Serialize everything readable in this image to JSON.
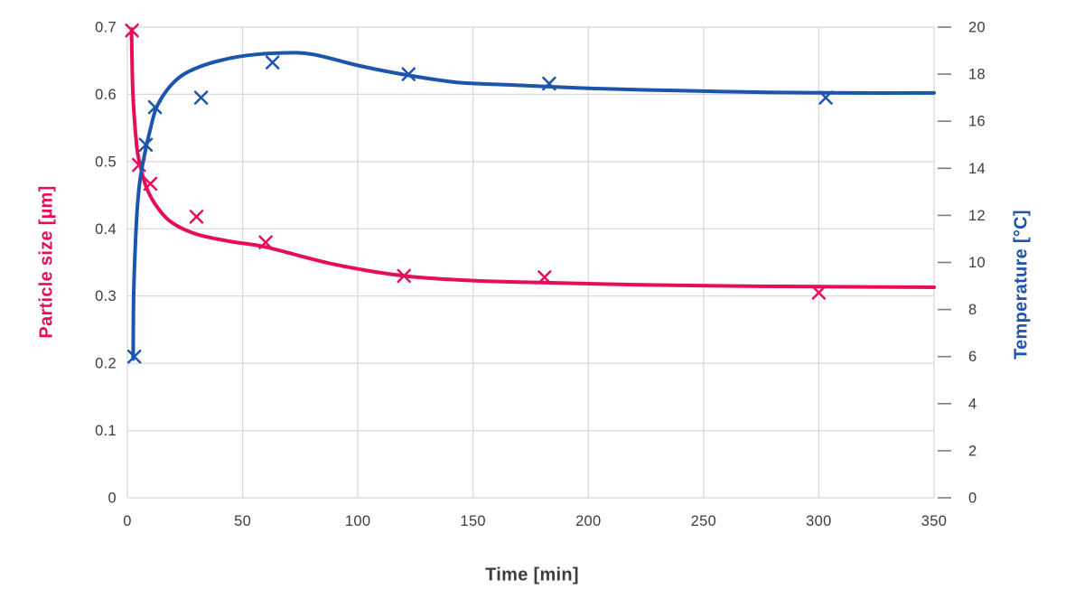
{
  "chart_data": {
    "type": "line",
    "title": "",
    "grid": true,
    "legend": false,
    "marker_style": "x",
    "x_axis": {
      "title": "Time [min]",
      "min": 0,
      "max": 350,
      "ticks": [
        "0",
        "50",
        "100",
        "150",
        "200",
        "250",
        "300",
        "350"
      ]
    },
    "left_axis": {
      "title": "Particle size [µm]",
      "color": "#e60e5c",
      "min": 0,
      "max": 0.7,
      "ticks": [
        "0",
        "0.1",
        "0.2",
        "0.3",
        "0.4",
        "0.5",
        "0.6",
        "0.7"
      ]
    },
    "right_axis": {
      "title": "Temperature [°C]",
      "color": "#1b55ac",
      "min": 0,
      "max": 20,
      "ticks": [
        "0",
        "2",
        "4",
        "6",
        "8",
        "10",
        "12",
        "14",
        "16",
        "18",
        "20"
      ]
    },
    "series": [
      {
        "name": "Particle size",
        "axis": "left",
        "color": "#e60e5c",
        "marker": "x",
        "points": [
          [
            2,
            0.695
          ],
          [
            5,
            0.495
          ],
          [
            10,
            0.467
          ],
          [
            30,
            0.418
          ],
          [
            60,
            0.38
          ],
          [
            120,
            0.33
          ],
          [
            181,
            0.328
          ],
          [
            300,
            0.305
          ]
        ],
        "fit_curve": [
          [
            1.8,
            0.697
          ],
          [
            2.4,
            0.602
          ],
          [
            4,
            0.525
          ],
          [
            5.5,
            0.496
          ],
          [
            8,
            0.464
          ],
          [
            12,
            0.437
          ],
          [
            19,
            0.41
          ],
          [
            30,
            0.392
          ],
          [
            45,
            0.381
          ],
          [
            60,
            0.373
          ],
          [
            90,
            0.347
          ],
          [
            120,
            0.33
          ],
          [
            150,
            0.323
          ],
          [
            180,
            0.32
          ],
          [
            220,
            0.317
          ],
          [
            260,
            0.315
          ],
          [
            300,
            0.314
          ],
          [
            350,
            0.313
          ]
        ]
      },
      {
        "name": "Temperature",
        "axis": "right",
        "color": "#1b55ac",
        "marker": "x",
        "points": [
          [
            3,
            6
          ],
          [
            8,
            15
          ],
          [
            12,
            16.6
          ],
          [
            32,
            17.0
          ],
          [
            63,
            18.5
          ],
          [
            122,
            18.0
          ],
          [
            183,
            17.6
          ],
          [
            303,
            17.0
          ]
        ],
        "fit_curve": [
          [
            2.5,
            5.9
          ],
          [
            2.7,
            8.5
          ],
          [
            3.5,
            10.8
          ],
          [
            4.3,
            12.3
          ],
          [
            5.5,
            13.5
          ],
          [
            7.5,
            14.6
          ],
          [
            9.8,
            15.6
          ],
          [
            12.5,
            16.55
          ],
          [
            17,
            17.3
          ],
          [
            23,
            17.9
          ],
          [
            31,
            18.3
          ],
          [
            41,
            18.6
          ],
          [
            52,
            18.8
          ],
          [
            66,
            18.9
          ],
          [
            80,
            18.85
          ],
          [
            101,
            18.35
          ],
          [
            122,
            17.95
          ],
          [
            143,
            17.65
          ],
          [
            164,
            17.55
          ],
          [
            200,
            17.4
          ],
          [
            239,
            17.3
          ],
          [
            278,
            17.23
          ],
          [
            317,
            17.2
          ],
          [
            350,
            17.2
          ]
        ]
      }
    ],
    "style": {
      "gridline_color": "#d7d7d7",
      "tick_color": "#7d7d7d",
      "tick_label_color": "#3d3d3d",
      "background": "#ffffff"
    }
  }
}
